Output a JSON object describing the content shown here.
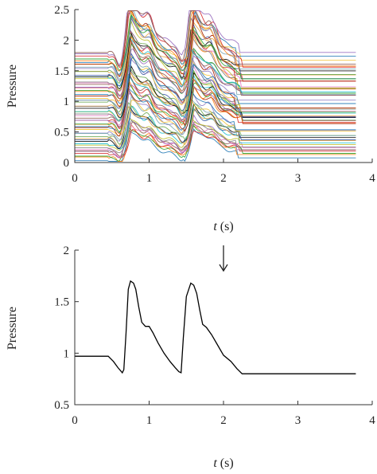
{
  "chart_data": [
    {
      "type": "line",
      "title": "",
      "xlabel_var": "t",
      "xlabel_unit": " (s)",
      "ylabel": "Pressure",
      "xlim": [
        0,
        4
      ],
      "ylim": [
        0,
        2.5
      ],
      "x_ticks": [
        0,
        1,
        2,
        3,
        4
      ],
      "y_ticks": [
        0,
        0.5,
        1,
        1.5,
        2,
        2.5
      ],
      "y_tick_labels": [
        "0",
        "0.5",
        "1",
        "1.5",
        "2",
        "2.5"
      ],
      "grid": false,
      "legend": "none",
      "series_count": 60,
      "baseline_range": [
        0.05,
        1.8
      ],
      "waveform_time_range": [
        0.45,
        2.25
      ],
      "flat_until": 3.78,
      "peak_times": [
        0.74,
        1.58
      ],
      "palette": [
        "#1f77b4",
        "#ff7f0e",
        "#2ca02c",
        "#d62728",
        "#9467bd",
        "#8c564b",
        "#e377c2",
        "#7f7f7f",
        "#bcbd22",
        "#17becf",
        "#000000",
        "#3b5ba5",
        "#e8a33d",
        "#6aa84f",
        "#8e7cc3",
        "#76a5af",
        "#f1c232",
        "#a61c00"
      ]
    },
    {
      "type": "line",
      "title": "",
      "xlabel_var": "t",
      "xlabel_unit": " (s)",
      "ylabel": "Pressure",
      "xlim": [
        0,
        4
      ],
      "ylim": [
        0.5,
        2
      ],
      "x_ticks": [
        0,
        1,
        2,
        3,
        4
      ],
      "y_ticks": [
        0.5,
        1,
        1.5,
        2
      ],
      "y_tick_labels": [
        "0.5",
        "1",
        "1.5",
        "2"
      ],
      "grid": false,
      "legend": "none",
      "annotation": {
        "type": "arrow",
        "at_x": 2.0
      },
      "series": [
        {
          "color": "#000000",
          "x": [
            0,
            0.45,
            0.52,
            0.58,
            0.64,
            0.66,
            0.69,
            0.72,
            0.75,
            0.79,
            0.82,
            0.86,
            0.9,
            0.95,
            1.0,
            1.05,
            1.12,
            1.2,
            1.28,
            1.35,
            1.4,
            1.43,
            1.46,
            1.5,
            1.56,
            1.6,
            1.64,
            1.68,
            1.72,
            1.77,
            1.84,
            1.92,
            2.0,
            2.1,
            2.18,
            2.25,
            2.5,
            3.0,
            3.5,
            3.78
          ],
          "y": [
            0.97,
            0.97,
            0.92,
            0.86,
            0.81,
            0.84,
            1.2,
            1.62,
            1.7,
            1.68,
            1.62,
            1.45,
            1.3,
            1.26,
            1.26,
            1.2,
            1.1,
            1.0,
            0.92,
            0.86,
            0.82,
            0.81,
            1.15,
            1.55,
            1.68,
            1.66,
            1.58,
            1.42,
            1.28,
            1.25,
            1.18,
            1.08,
            0.98,
            0.92,
            0.85,
            0.8,
            0.8,
            0.8,
            0.8,
            0.8
          ]
        }
      ]
    }
  ]
}
